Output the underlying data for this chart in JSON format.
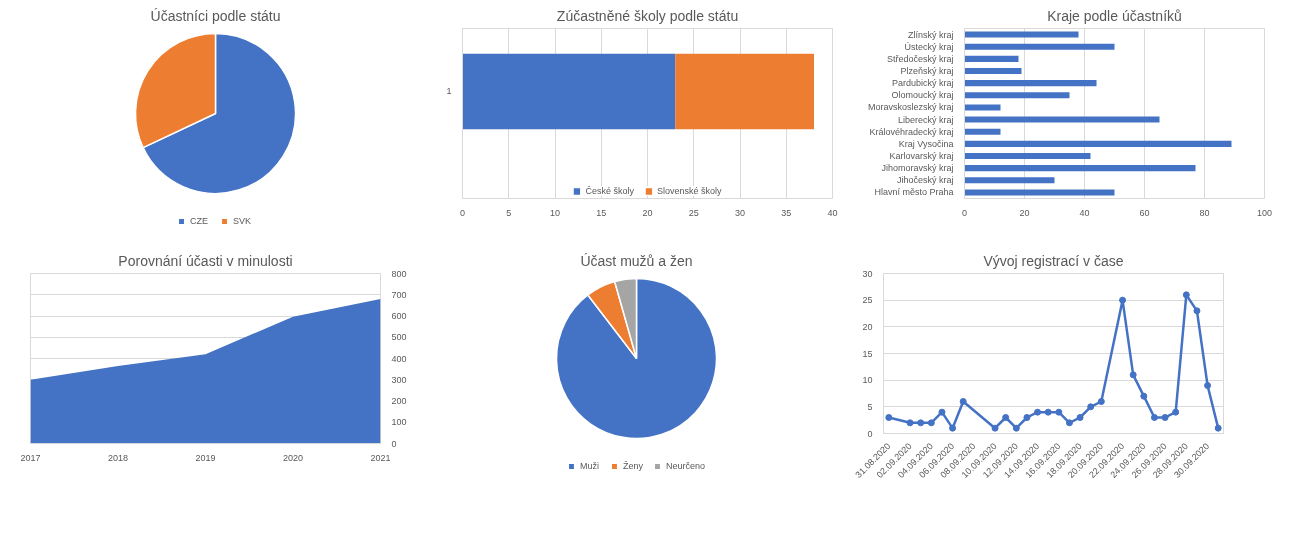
{
  "chart_data": [
    {
      "type": "pie",
      "title": "Účastníci podle státu",
      "categories": [
        "CZE",
        "SVK"
      ],
      "values": [
        68,
        32
      ],
      "colors": [
        "#4472c4",
        "#ed7d31"
      ],
      "legend": "bottom"
    },
    {
      "type": "bar",
      "title": "Zúčastněné školy podle státu",
      "orientation": "horizontal",
      "stacked": true,
      "categories": [
        "1"
      ],
      "series": [
        {
          "name": "České školy",
          "color": "#4472c4",
          "values": [
            23
          ]
        },
        {
          "name": "Slovenské školy",
          "color": "#ed7d31",
          "values": [
            15
          ]
        }
      ],
      "xlim": [
        0,
        40
      ],
      "xticks": [
        0,
        5,
        10,
        15,
        20,
        25,
        30,
        35,
        40
      ],
      "grid": "x",
      "legend": "bottom"
    },
    {
      "type": "bar",
      "title": "Kraje podle účastníků",
      "orientation": "horizontal",
      "categories": [
        "Zlínský kraj",
        "Ústecký kraj",
        "Středočeský kraj",
        "Plzeňský kraj",
        "Pardubický kraj",
        "Olomoucký kraj",
        "Moravskoslezský kraj",
        "Liberecký kraj",
        "Královéhradecký kraj",
        "Kraj Vysočina",
        "Karlovarský kraj",
        "Jihomoravský kraj",
        "Jihočeský kraj",
        "Hlavní město Praha"
      ],
      "values": [
        38,
        50,
        18,
        19,
        44,
        35,
        12,
        65,
        12,
        89,
        42,
        77,
        30,
        50
      ],
      "color": "#4472c4",
      "xlim": [
        0,
        100
      ],
      "xticks": [
        0,
        20,
        40,
        60,
        80,
        100
      ],
      "grid": "x"
    },
    {
      "type": "area",
      "title": "Porovnání účasti v minulosti",
      "x": [
        2017,
        2018,
        2019,
        2020,
        2021
      ],
      "values": [
        300,
        365,
        420,
        597,
        680
      ],
      "color": "#4472c4",
      "xlim": [
        2017,
        2021
      ],
      "xticks": [
        2017,
        2018,
        2019,
        2020,
        2021
      ],
      "ylim": [
        0,
        800
      ],
      "yticks": [
        0,
        100,
        200,
        300,
        400,
        500,
        600,
        700,
        800
      ],
      "grid": "y"
    },
    {
      "type": "pie",
      "title": "Účast mužů a žen",
      "categories": [
        "Muži",
        "Ženy",
        "Neurčeno"
      ],
      "values": [
        89.6,
        6.0,
        4.4
      ],
      "colors": [
        "#4472c4",
        "#ed7d31",
        "#a5a5a5"
      ],
      "legend": "bottom"
    },
    {
      "type": "line",
      "title": "Vývoj registrací v čase",
      "x": [
        "2020-08-31",
        "2020-09-02",
        "2020-09-03",
        "2020-09-04",
        "2020-09-05",
        "2020-09-06",
        "2020-09-07",
        "2020-09-10",
        "2020-09-11",
        "2020-09-12",
        "2020-09-13",
        "2020-09-14",
        "2020-09-15",
        "2020-09-16",
        "2020-09-17",
        "2020-09-18",
        "2020-09-19",
        "2020-09-20",
        "2020-09-22",
        "2020-09-23",
        "2020-09-24",
        "2020-09-25",
        "2020-09-26",
        "2020-09-27",
        "2020-09-28",
        "2020-09-29",
        "2020-09-30",
        "2020-10-01"
      ],
      "values": [
        3,
        2,
        2,
        2,
        4,
        1,
        6,
        1,
        3,
        1,
        3,
        4,
        4,
        4,
        2,
        3,
        5,
        6,
        25,
        11,
        7,
        3,
        3,
        4,
        26,
        23,
        9,
        1
      ],
      "color": "#4472c4",
      "marker": "circle",
      "line_style": "solid",
      "xlim": [
        "2020-08-30T12:00",
        "2020-10-01T12:00"
      ],
      "xticks": [
        {
          "value": "2020-08-31",
          "label": "31.08.2020"
        },
        {
          "value": "2020-09-02",
          "label": "02.09.2020"
        },
        {
          "value": "2020-09-04",
          "label": "04.09.2020"
        },
        {
          "value": "2020-09-06",
          "label": "06.09.2020"
        },
        {
          "value": "2020-09-08",
          "label": "08.09.2020"
        },
        {
          "value": "2020-09-10",
          "label": "10.09.2020"
        },
        {
          "value": "2020-09-12",
          "label": "12.09.2020"
        },
        {
          "value": "2020-09-14",
          "label": "14.09.2020"
        },
        {
          "value": "2020-09-16",
          "label": "16.09.2020"
        },
        {
          "value": "2020-09-18",
          "label": "18.09.2020"
        },
        {
          "value": "2020-09-20",
          "label": "20.09.2020"
        },
        {
          "value": "2020-09-22",
          "label": "22.09.2020"
        },
        {
          "value": "2020-09-24",
          "label": "24.09.2020"
        },
        {
          "value": "2020-09-26",
          "label": "26.09.2020"
        },
        {
          "value": "2020-09-28",
          "label": "28.09.2020"
        },
        {
          "value": "2020-09-30",
          "label": "30.09.2020"
        }
      ],
      "ylim": [
        0,
        30
      ],
      "yticks": [
        0,
        5,
        10,
        15,
        20,
        25,
        30
      ],
      "grid": "y"
    }
  ]
}
